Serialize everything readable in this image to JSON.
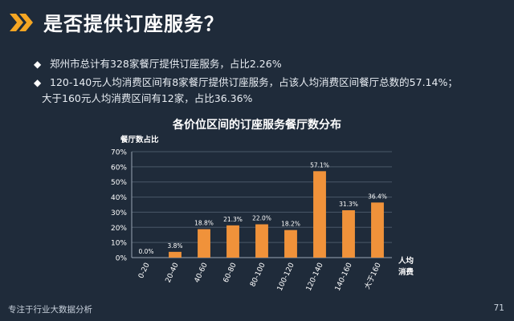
{
  "header": {
    "title": "是否提供订座服务？",
    "icon": "double-chevron-right-icon",
    "accent_color": "#f5a623"
  },
  "bullets": [
    "郑州市总计有328家餐厅提供订座服务，占比2.26%",
    "120-140元人均消费区间有8家餐厅提供订座服务，占该人均消费区间餐厅总数的57.14%；",
    "大于160元人均消费区间有12家，占比36.36%"
  ],
  "bullet_marker": "◆",
  "chart_data": {
    "type": "bar",
    "title": "各价位区间的订座服务餐厅数分布",
    "ylabel": "餐厅数占比",
    "xlabel_line1": "人均",
    "xlabel_line2": "消费",
    "categories": [
      "0-20",
      "20-40",
      "40-60",
      "60-80",
      "80-100",
      "100-120",
      "120-140",
      "140-160",
      "大于160"
    ],
    "values": [
      0.0,
      3.8,
      18.8,
      21.3,
      22.0,
      18.2,
      57.1,
      31.3,
      36.4
    ],
    "data_labels": [
      "0.0%",
      "3.8%",
      "18.8%",
      "21.3%",
      "22.0%",
      "18.2%",
      "57.1%",
      "31.3%",
      "36.4%"
    ],
    "ylim": [
      0,
      70
    ],
    "yticks": [
      "0%",
      "10%",
      "20%",
      "30%",
      "40%",
      "50%",
      "60%",
      "70%"
    ],
    "grid": true,
    "bar_color": "#f0923a"
  },
  "footer": {
    "text": "专注于行业大数据分析",
    "page_number": "71"
  }
}
